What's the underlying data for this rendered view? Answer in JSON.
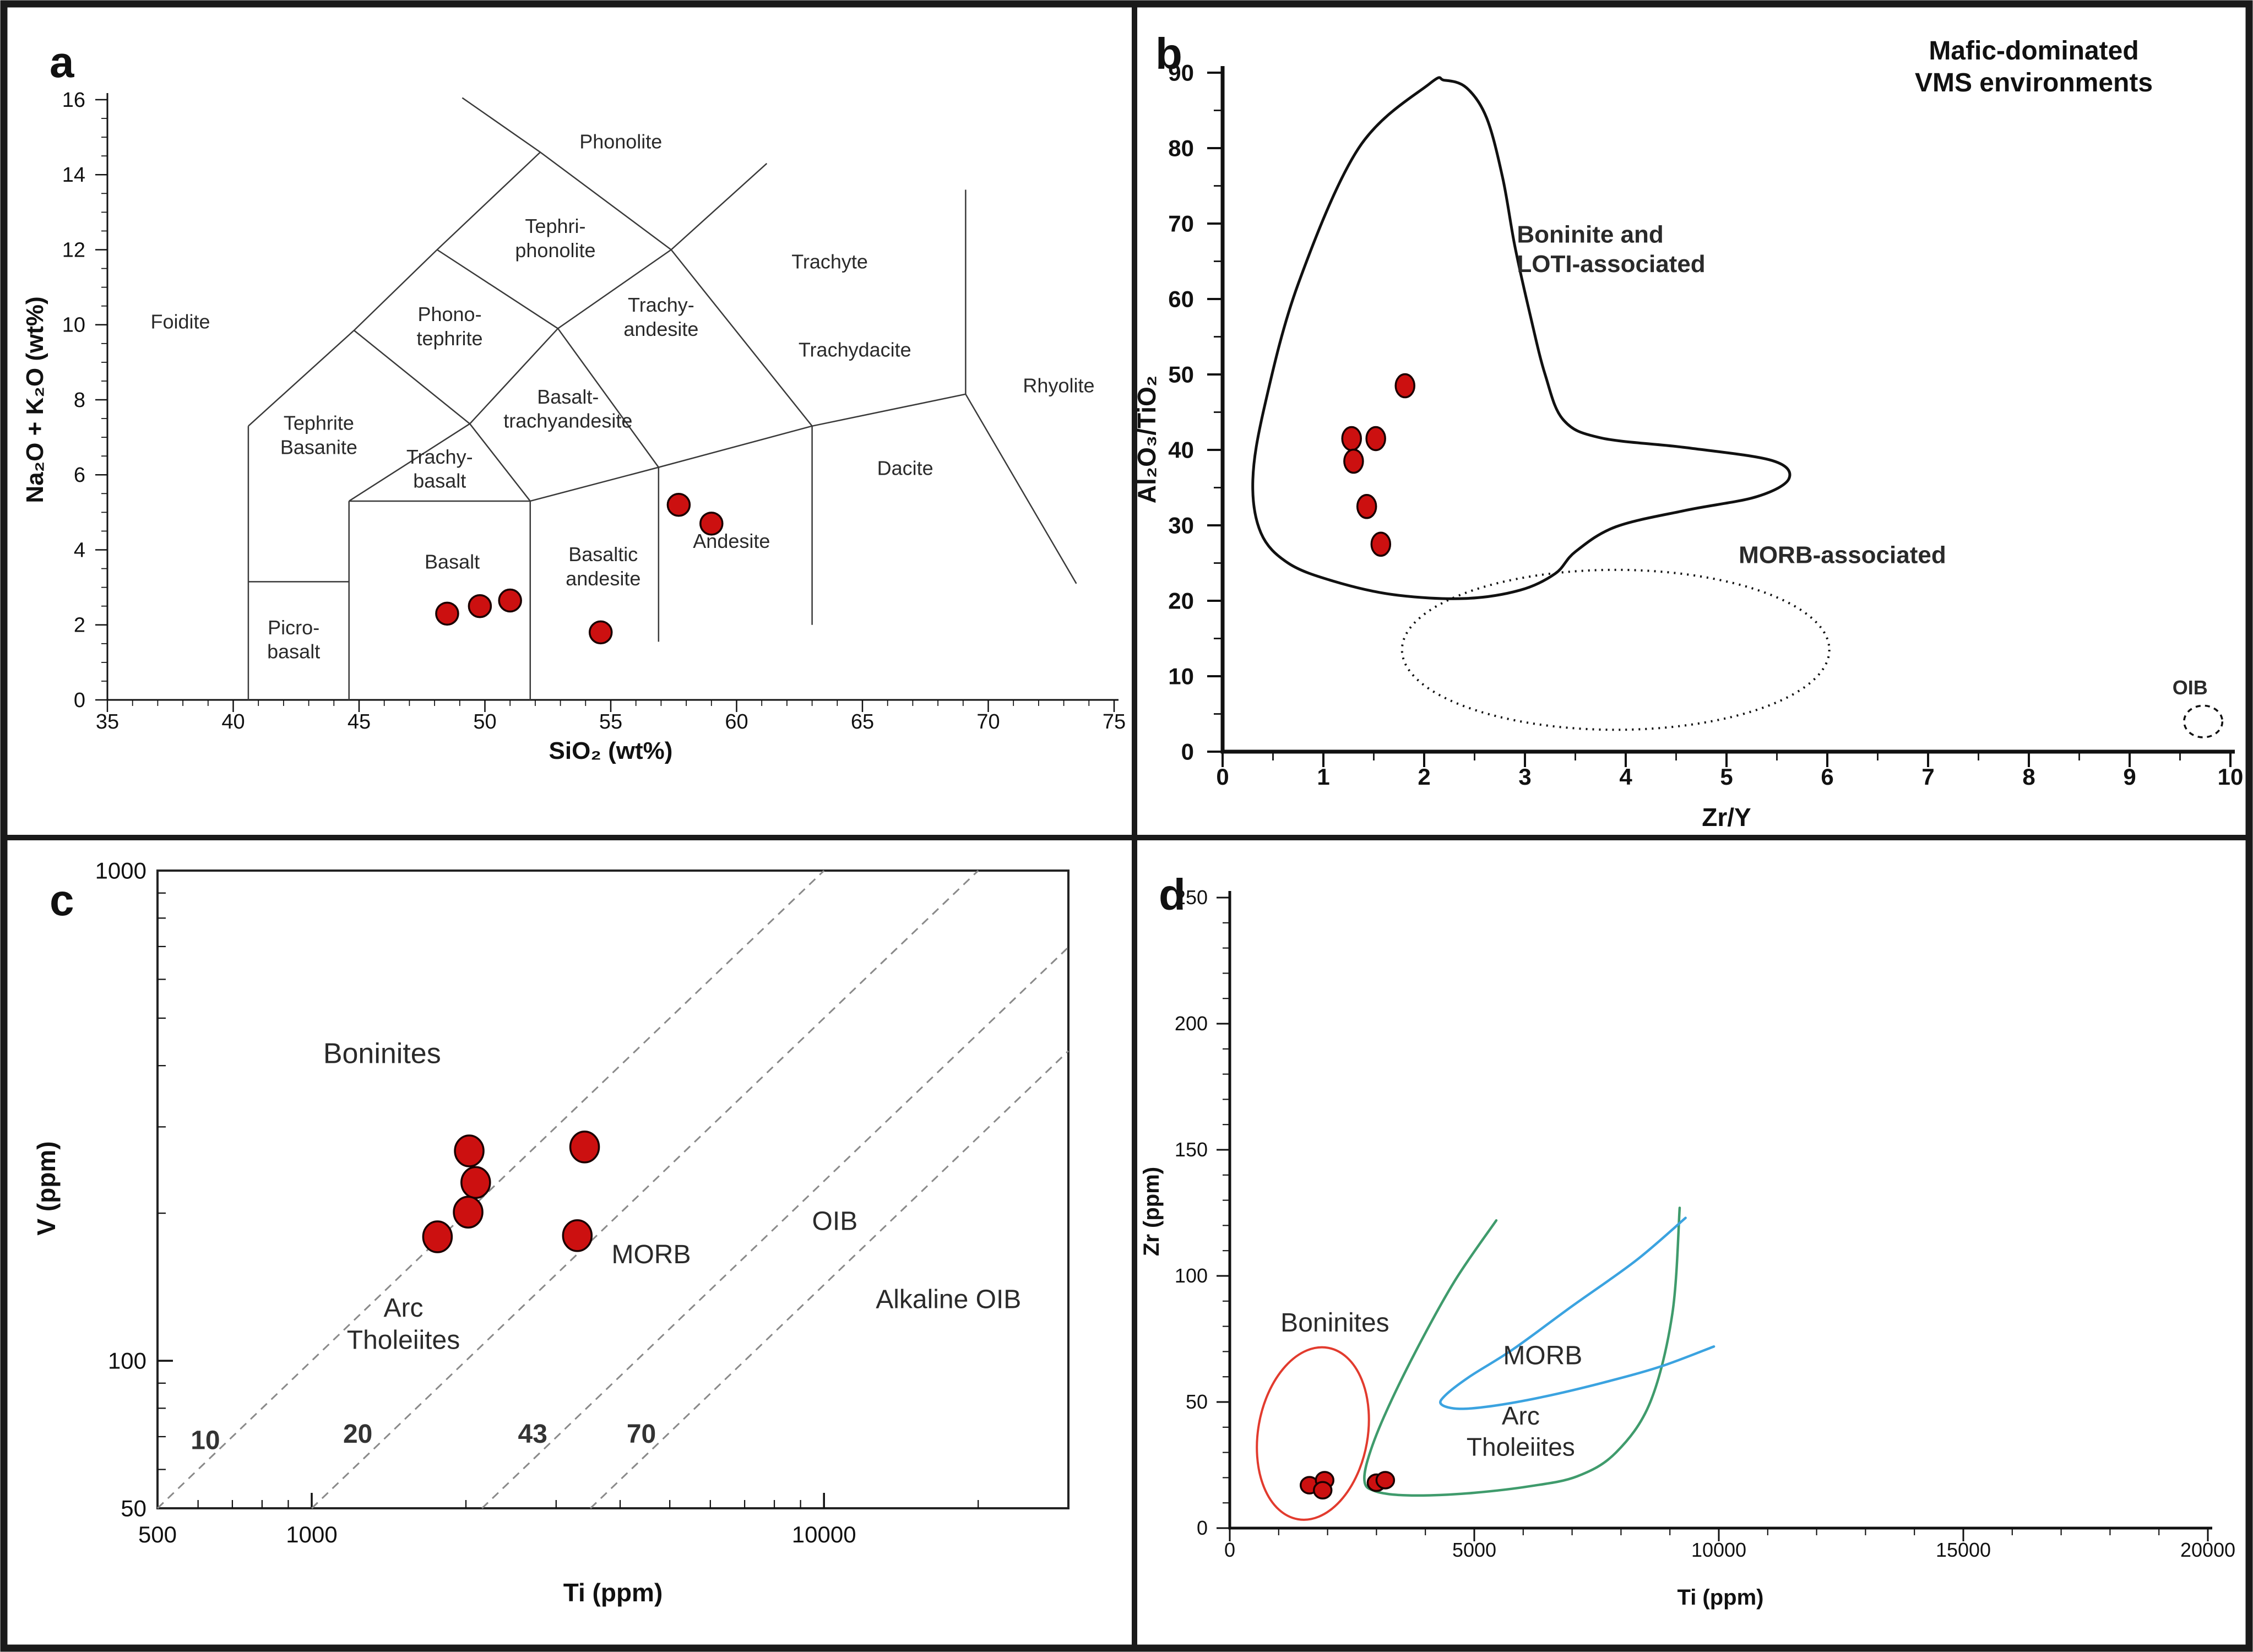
{
  "figure": {
    "panels": [
      {
        "letter": "a"
      },
      {
        "letter": "b"
      },
      {
        "letter": "c"
      },
      {
        "letter": "d"
      }
    ],
    "marker_color": "#cc1010",
    "marker_edge_color": "#1a0000"
  },
  "chart_data": [
    {
      "panel": "a",
      "type": "scatter",
      "title": "",
      "xlabel": "SiO₂ (wt%)",
      "ylabel": "Na₂O + K₂O (wt%)",
      "xlim": [
        35,
        75
      ],
      "ylim": [
        0,
        16
      ],
      "xticks": [
        "35",
        "40",
        "45",
        "50",
        "55",
        "60",
        "65",
        "70",
        "75"
      ],
      "yticks": [
        "0",
        "2",
        "4",
        "6",
        "8",
        "10",
        "12",
        "14",
        "16"
      ],
      "x_minor_step": 1,
      "y_minor_step": 0.5,
      "points": [
        [
          48.5,
          2.3
        ],
        [
          49.8,
          2.5
        ],
        [
          51.0,
          2.65
        ],
        [
          54.6,
          1.8
        ],
        [
          57.7,
          5.2
        ],
        [
          59.0,
          4.7
        ]
      ],
      "boundary_lines": [
        [
          [
            40.6,
            0
          ],
          [
            40.6,
            7.3
          ]
        ],
        [
          [
            40.6,
            3.15
          ],
          [
            44.6,
            3.15
          ]
        ],
        [
          [
            44.6,
            0
          ],
          [
            44.6,
            5.3
          ]
        ],
        [
          [
            51.8,
            0
          ],
          [
            51.8,
            5.3
          ]
        ],
        [
          [
            44.6,
            5.3
          ],
          [
            51.8,
            5.3
          ]
        ],
        [
          [
            56.9,
            1.55
          ],
          [
            56.9,
            6.2
          ]
        ],
        [
          [
            63,
            2.0
          ],
          [
            63,
            7.3
          ]
        ],
        [
          [
            51.8,
            5.3
          ],
          [
            56.9,
            6.2
          ],
          [
            63,
            7.3
          ]
        ],
        [
          [
            63,
            7.3
          ],
          [
            69.1,
            8.15
          ],
          [
            73.5,
            3.1
          ]
        ],
        [
          [
            69.1,
            8.15
          ],
          [
            69.1,
            13.6
          ]
        ],
        [
          [
            40.6,
            7.3
          ],
          [
            44.8,
            9.85
          ],
          [
            48.1,
            12.0
          ],
          [
            52.2,
            14.6
          ]
        ],
        [
          [
            49.1,
            16.05
          ],
          [
            52.2,
            14.6
          ],
          [
            57.4,
            12.0
          ],
          [
            61.2,
            14.3
          ]
        ],
        [
          [
            57.4,
            12.0
          ],
          [
            63,
            7.3
          ]
        ],
        [
          [
            48.1,
            12.0
          ],
          [
            52.9,
            9.9
          ],
          [
            57.4,
            12.0
          ]
        ],
        [
          [
            44.8,
            9.85
          ],
          [
            49.4,
            7.36
          ]
        ],
        [
          [
            44.6,
            5.3
          ],
          [
            49.4,
            7.36
          ],
          [
            51.8,
            5.3
          ]
        ],
        [
          [
            49.4,
            7.36
          ],
          [
            52.9,
            9.9
          ]
        ],
        [
          [
            52.9,
            9.9
          ],
          [
            56.9,
            6.2
          ]
        ]
      ],
      "field_labels": [
        {
          "lines": [
            "Foidite"
          ],
          "x": 37.9,
          "y": 9.9
        },
        {
          "lines": [
            "Phonolite"
          ],
          "x": 55.4,
          "y": 14.7
        },
        {
          "lines": [
            "Tephri-",
            "phonolite"
          ],
          "x": 52.8,
          "y": 12.45
        },
        {
          "lines": [
            "Phono-",
            "tephrite"
          ],
          "x": 48.6,
          "y": 10.1
        },
        {
          "lines": [
            "Tephrite",
            "Basanite"
          ],
          "x": 43.4,
          "y": 7.2
        },
        {
          "lines": [
            "Trachy-",
            "basalt"
          ],
          "x": 48.2,
          "y": 6.3
        },
        {
          "lines": [
            "Basalt-",
            "trachyandesite"
          ],
          "x": 53.3,
          "y": 7.9
        },
        {
          "lines": [
            "Trachy-",
            "andesite"
          ],
          "x": 57.0,
          "y": 10.35
        },
        {
          "lines": [
            "Trachyte"
          ],
          "x": 63.7,
          "y": 11.5
        },
        {
          "lines": [
            "Trachydacite"
          ],
          "x": 64.7,
          "y": 9.15
        },
        {
          "lines": [
            "Rhyolite"
          ],
          "x": 72.8,
          "y": 8.2
        },
        {
          "lines": [
            "Dacite"
          ],
          "x": 66.7,
          "y": 6.0
        },
        {
          "lines": [
            "Andesite"
          ],
          "x": 59.8,
          "y": 4.05
        },
        {
          "lines": [
            "Basaltic",
            "andesite"
          ],
          "x": 54.7,
          "y": 3.7
        },
        {
          "lines": [
            "Basalt"
          ],
          "x": 48.7,
          "y": 3.5
        },
        {
          "lines": [
            "Picro-",
            "basalt"
          ],
          "x": 42.4,
          "y": 1.75
        }
      ]
    },
    {
      "panel": "b",
      "type": "scatter",
      "title_lines": [
        "Mafic-dominated",
        "VMS environments"
      ],
      "xlabel": "Zr/Y",
      "ylabel": "Al₂O₃/TiO₂",
      "xlim": [
        0,
        10
      ],
      "ylim": [
        0,
        90
      ],
      "xticks": [
        "0",
        "1",
        "2",
        "3",
        "4",
        "5",
        "6",
        "7",
        "8",
        "9",
        "10"
      ],
      "yticks": [
        "0",
        "10",
        "20",
        "30",
        "40",
        "50",
        "60",
        "70",
        "80",
        "90"
      ],
      "x_minor_step": 0.5,
      "y_minor_step": 5,
      "points": [
        [
          1.81,
          48.5
        ],
        [
          1.28,
          41.5
        ],
        [
          1.52,
          41.5
        ],
        [
          1.3,
          38.5
        ],
        [
          1.43,
          32.5
        ],
        [
          1.57,
          27.5
        ]
      ],
      "fields": [
        {
          "name": "boninite-loti-outline",
          "kind": "blob",
          "closed": true,
          "stroke": "#111111",
          "width": 5,
          "dash": "",
          "pts": [
            [
              2.05,
              88.5
            ],
            [
              1.35,
              80
            ],
            [
              0.75,
              62
            ],
            [
              0.42,
              46
            ],
            [
              0.3,
              36
            ],
            [
              0.38,
              29
            ],
            [
              0.65,
              25
            ],
            [
              1.1,
              22.6
            ],
            [
              1.7,
              20.8
            ],
            [
              2.4,
              20.3
            ],
            [
              2.95,
              21.4
            ],
            [
              3.3,
              23.6
            ],
            [
              3.5,
              26.5
            ],
            [
              3.9,
              29.8
            ],
            [
              4.6,
              32.0
            ],
            [
              5.3,
              33.8
            ],
            [
              5.62,
              36.2
            ],
            [
              5.45,
              38.6
            ],
            [
              4.6,
              40.3
            ],
            [
              3.75,
              41.6
            ],
            [
              3.38,
              44
            ],
            [
              3.2,
              50
            ],
            [
              3.05,
              58
            ],
            [
              2.9,
              67
            ],
            [
              2.78,
              76
            ],
            [
              2.62,
              84
            ],
            [
              2.42,
              88
            ],
            [
              2.2,
              89
            ]
          ]
        },
        {
          "name": "morb-ellipse",
          "kind": "ellipse",
          "cx": 3.9,
          "cy": 13.5,
          "rx": 2.12,
          "ry": 10.6,
          "rot": 0,
          "stroke": "#111111",
          "width": 4,
          "dash": "3 9"
        },
        {
          "name": "oib-ellipse",
          "kind": "ellipse",
          "cx": 9.73,
          "cy": 4.0,
          "rx": 0.19,
          "ry": 2.1,
          "rot": 0,
          "stroke": "#111111",
          "width": 3.5,
          "dash": "9 8"
        }
      ],
      "labels": [
        {
          "lines": [
            "Boninite and",
            "LOTI-associated"
          ],
          "x": 2.92,
          "y": 67.5,
          "bold": true,
          "size": 44,
          "align": "left"
        },
        {
          "lines": [
            "MORB-associated"
          ],
          "x": 6.15,
          "y": 25.0,
          "bold": true,
          "size": 44
        },
        {
          "lines": [
            "OIB"
          ],
          "x": 9.6,
          "y": 7.6,
          "bold": true,
          "size": 36
        }
      ]
    },
    {
      "panel": "c",
      "type": "scatter",
      "xscale": "log",
      "yscale": "log",
      "xlabel": "Ti (ppm)",
      "ylabel": "V (ppm)",
      "xlim": [
        500,
        30000
      ],
      "ylim": [
        50,
        1000
      ],
      "xticks_labeled": [
        [
          500,
          "500"
        ],
        [
          1000,
          "1000"
        ],
        [
          10000,
          "10000"
        ]
      ],
      "yticks_labeled": [
        [
          1000,
          "1000"
        ],
        [
          100,
          "100"
        ],
        [
          50,
          "50"
        ]
      ],
      "ratio_lines": [
        {
          "r": 10,
          "label": "10",
          "lx": 620,
          "ly": 66
        },
        {
          "r": 20,
          "label": "20",
          "lx": 1230,
          "ly": 68
        },
        {
          "r": 43,
          "label": "43",
          "lx": 2700,
          "ly": 68
        },
        {
          "r": 70,
          "label": "70",
          "lx": 4400,
          "ly": 68
        }
      ],
      "points": [
        [
          2030,
          268
        ],
        [
          2090,
          231
        ],
        [
          2020,
          201
        ],
        [
          1760,
          179
        ],
        [
          3410,
          273
        ],
        [
          3300,
          180
        ]
      ],
      "labels": [
        {
          "lines": [
            "Boninites"
          ],
          "x": 1372,
          "y": 405,
          "size": 52
        },
        {
          "lines": [
            "Arc",
            "Tholeiites"
          ],
          "x": 1510,
          "y": 123,
          "size": 48
        },
        {
          "lines": [
            "MORB"
          ],
          "x": 4600,
          "y": 158,
          "size": 48
        },
        {
          "lines": [
            "OIB"
          ],
          "x": 10500,
          "y": 185,
          "size": 48
        },
        {
          "lines": [
            "Alkaline OIB"
          ],
          "x": 17500,
          "y": 128,
          "size": 48
        }
      ]
    },
    {
      "panel": "d",
      "type": "scatter",
      "xlabel": "Ti (ppm)",
      "ylabel": "Zr (ppm)",
      "xlim": [
        0,
        20000
      ],
      "ylim": [
        0,
        250
      ],
      "xticks": [
        "0",
        "5000",
        "10000",
        "15000",
        "20000"
      ],
      "yticks": [
        "0",
        "50",
        "100",
        "150",
        "200",
        "250"
      ],
      "x_minor_step": 1000,
      "y_minor_step": 10,
      "points": [
        [
          1630,
          17
        ],
        [
          1940,
          19
        ],
        [
          1900,
          15
        ],
        [
          3000,
          18
        ],
        [
          3180,
          19
        ]
      ],
      "fields": [
        {
          "name": "boninites-ellipse",
          "kind": "ellipse",
          "cx": 1700,
          "cy": 37.5,
          "rx": 1120,
          "ry": 34.5,
          "rot": 10,
          "stroke": "#e23b2e",
          "width": 4,
          "dash": ""
        },
        {
          "name": "arc-tholeiites-outline",
          "kind": "smooth",
          "closed": false,
          "stroke": "#3f9b6c",
          "width": 4.5,
          "dash": "",
          "pts": [
            [
              5450,
              122
            ],
            [
              4600,
              98
            ],
            [
              3800,
              70
            ],
            [
              3150,
              44
            ],
            [
              2820,
              27
            ],
            [
              2760,
              18
            ],
            [
              2950,
              14.8
            ],
            [
              3400,
              13.2
            ],
            [
              4100,
              13
            ],
            [
              5000,
              14
            ],
            [
              6100,
              16.5
            ],
            [
              7100,
              20.5
            ],
            [
              7900,
              30
            ],
            [
              8600,
              50
            ],
            [
              9050,
              85
            ],
            [
              9200,
              127
            ]
          ]
        },
        {
          "name": "morb-outline",
          "kind": "smooth",
          "closed": false,
          "stroke": "#3ba3e0",
          "width": 4.5,
          "dash": "",
          "pts": [
            [
              9320,
              123
            ],
            [
              8300,
              106
            ],
            [
              7000,
              88
            ],
            [
              5800,
              71
            ],
            [
              4900,
              60
            ],
            [
              4400,
              52.5
            ],
            [
              4330,
              49
            ],
            [
              4700,
              47.3
            ],
            [
              5400,
              48.5
            ],
            [
              6400,
              52
            ],
            [
              7600,
              57.5
            ],
            [
              8800,
              64
            ],
            [
              9900,
              72
            ]
          ]
        }
      ],
      "labels": [
        {
          "lines": [
            "Boninites"
          ],
          "x": 2150,
          "y": 78,
          "size": 48
        },
        {
          "lines": [
            "MORB"
          ],
          "x": 6400,
          "y": 65,
          "size": 48
        },
        {
          "lines": [
            "Arc",
            "Tholeiites"
          ],
          "x": 5950,
          "y": 41,
          "size": 46
        }
      ]
    }
  ]
}
